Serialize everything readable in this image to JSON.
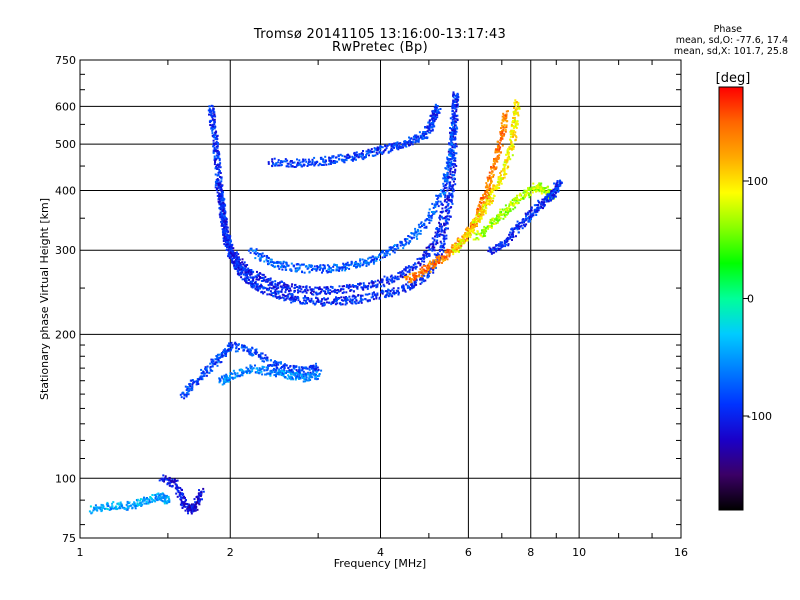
{
  "title_line1": "Tromsø 20141105 13:16:00-13:17:43",
  "title_line2": "RwPretec (Bp)",
  "phase_box": {
    "title": "Phase",
    "stat_o": "mean, sd,O: -77.6, 17.4",
    "stat_x": "mean, sd,X: 101.7, 25.8"
  },
  "colorbar": {
    "label": "[deg]",
    "range": [
      -180,
      180
    ],
    "ticks": [
      {
        "value": 100,
        "label": "100"
      },
      {
        "value": 0,
        "label": "0"
      },
      {
        "value": -100,
        "label": "-100"
      }
    ],
    "colors": [
      "#000000",
      "#3b0066",
      "#1a00c8",
      "#0033ff",
      "#0080ff",
      "#00ccff",
      "#00ff99",
      "#00ff00",
      "#88ff00",
      "#ffff00",
      "#ffaa00",
      "#ff6600",
      "#ff0000"
    ]
  },
  "chart_data": {
    "type": "scatter",
    "title": "Tromsø 20141105 13:16:00-13:17:43",
    "subtitle": "RwPretec (Bp)",
    "xlabel": "Frequency [MHz]",
    "ylabel": "Stationary phase Virtual Height [km]",
    "xscale": "log",
    "yscale": "log",
    "xlim": [
      1,
      16
    ],
    "ylim": [
      75,
      750
    ],
    "x_ticks": [
      1,
      2,
      4,
      6,
      8,
      10,
      16
    ],
    "x_tick_labels": [
      "1",
      "2",
      "4",
      "6",
      "8",
      "10",
      "16"
    ],
    "y_ticks": [
      75,
      100,
      200,
      300,
      400,
      500,
      600,
      750
    ],
    "y_tick_labels": [
      "75",
      "100",
      "200",
      "300",
      "400",
      "500",
      "600",
      "750"
    ],
    "grid": true,
    "colorbar_label": "[deg]",
    "colorbar_range": [
      -180,
      180
    ],
    "traces": [
      {
        "name": "",
        "phase": -95,
        "points": [
          [
            1.82,
            600
          ],
          [
            1.84,
            550
          ],
          [
            1.86,
            500
          ],
          [
            1.88,
            450
          ],
          [
            1.9,
            400
          ],
          [
            1.92,
            370
          ],
          [
            1.94,
            340
          ],
          [
            1.96,
            315
          ],
          [
            2.0,
            295
          ],
          [
            2.05,
            280
          ],
          [
            2.1,
            270
          ],
          [
            2.2,
            258
          ],
          [
            2.3,
            250
          ],
          [
            2.5,
            243
          ],
          [
            2.7,
            238
          ],
          [
            3.0,
            235
          ],
          [
            3.3,
            236
          ],
          [
            3.6,
            238
          ],
          [
            4.0,
            243
          ],
          [
            4.4,
            250
          ],
          [
            4.8,
            262
          ],
          [
            5.1,
            280
          ],
          [
            5.3,
            310
          ],
          [
            5.45,
            360
          ],
          [
            5.55,
            420
          ],
          [
            5.6,
            500
          ],
          [
            5.62,
            600
          ],
          [
            5.63,
            640
          ]
        ]
      },
      {
        "name": "",
        "phase": -100,
        "points": [
          [
            1.88,
            420
          ],
          [
            1.92,
            360
          ],
          [
            1.96,
            320
          ],
          [
            2.0,
            300
          ],
          [
            2.1,
            280
          ],
          [
            2.2,
            268
          ],
          [
            2.4,
            258
          ],
          [
            2.6,
            252
          ],
          [
            2.9,
            248
          ],
          [
            3.2,
            248
          ],
          [
            3.6,
            252
          ],
          [
            4.0,
            258
          ],
          [
            4.4,
            268
          ],
          [
            4.8,
            285
          ],
          [
            5.1,
            310
          ],
          [
            5.3,
            350
          ],
          [
            5.45,
            420
          ],
          [
            5.55,
            520
          ],
          [
            5.6,
            620
          ]
        ]
      },
      {
        "name": "",
        "phase": -75,
        "points": [
          [
            2.2,
            300
          ],
          [
            2.4,
            285
          ],
          [
            2.6,
            278
          ],
          [
            2.9,
            275
          ],
          [
            3.2,
            276
          ],
          [
            3.5,
            280
          ],
          [
            3.8,
            287
          ],
          [
            4.2,
            300
          ],
          [
            4.6,
            320
          ],
          [
            5.0,
            350
          ],
          [
            5.3,
            400
          ],
          [
            5.5,
            470
          ],
          [
            5.6,
            550
          ]
        ]
      },
      {
        "name": "",
        "phase": -90,
        "points": [
          [
            2.4,
            460
          ],
          [
            2.7,
            458
          ],
          [
            3.0,
            462
          ],
          [
            3.3,
            468
          ],
          [
            3.6,
            475
          ],
          [
            3.9,
            485
          ],
          [
            4.2,
            495
          ],
          [
            4.5,
            505
          ],
          [
            4.8,
            520
          ],
          [
            5.0,
            540
          ],
          [
            5.1,
            575
          ],
          [
            5.2,
            600
          ]
        ]
      },
      {
        "name": "",
        "phase": 140,
        "points": [
          [
            4.5,
            262
          ],
          [
            4.8,
            270
          ],
          [
            5.1,
            282
          ],
          [
            5.4,
            295
          ],
          [
            5.7,
            310
          ],
          [
            6.0,
            330
          ],
          [
            6.2,
            350
          ],
          [
            6.4,
            380
          ],
          [
            6.6,
            420
          ],
          [
            6.8,
            470
          ],
          [
            7.0,
            530
          ],
          [
            7.1,
            590
          ]
        ]
      },
      {
        "name": "",
        "phase": 95,
        "points": [
          [
            5.6,
            300
          ],
          [
            5.9,
            320
          ],
          [
            6.2,
            345
          ],
          [
            6.5,
            375
          ],
          [
            6.8,
            410
          ],
          [
            7.1,
            450
          ],
          [
            7.3,
            500
          ],
          [
            7.4,
            560
          ],
          [
            7.5,
            620
          ]
        ]
      },
      {
        "name": "",
        "phase": 70,
        "points": [
          [
            6.2,
            320
          ],
          [
            6.6,
            340
          ],
          [
            7.0,
            360
          ],
          [
            7.4,
            380
          ],
          [
            7.8,
            395
          ],
          [
            8.2,
            410
          ],
          [
            8.6,
            400
          ],
          [
            8.8,
            390
          ]
        ]
      },
      {
        "name": "",
        "phase": -95,
        "points": [
          [
            6.6,
            300
          ],
          [
            7.0,
            310
          ],
          [
            7.4,
            330
          ],
          [
            7.8,
            350
          ],
          [
            8.2,
            370
          ],
          [
            8.6,
            385
          ],
          [
            8.9,
            400
          ],
          [
            9.1,
            420
          ]
        ]
      },
      {
        "name": "",
        "phase": -85,
        "points": [
          [
            1.6,
            150
          ],
          [
            1.7,
            160
          ],
          [
            1.8,
            170
          ],
          [
            1.9,
            180
          ],
          [
            2.0,
            190
          ],
          [
            2.2,
            185
          ],
          [
            2.4,
            175
          ],
          [
            2.6,
            170
          ],
          [
            2.8,
            168
          ],
          [
            3.0,
            172
          ]
        ]
      },
      {
        "name": "",
        "phase": -60,
        "points": [
          [
            1.9,
            160
          ],
          [
            2.0,
            165
          ],
          [
            2.2,
            170
          ],
          [
            2.4,
            168
          ],
          [
            2.6,
            165
          ],
          [
            2.8,
            163
          ],
          [
            3.0,
            165
          ]
        ]
      },
      {
        "name": "",
        "phase": -45,
        "points": [
          [
            1.05,
            86
          ],
          [
            1.15,
            88
          ],
          [
            1.25,
            88
          ],
          [
            1.35,
            90
          ],
          [
            1.45,
            92
          ],
          [
            1.5,
            90
          ]
        ]
      },
      {
        "name": "",
        "phase": -110,
        "points": [
          [
            1.45,
            100
          ],
          [
            1.55,
            98
          ],
          [
            1.6,
            90
          ],
          [
            1.65,
            86
          ],
          [
            1.7,
            88
          ],
          [
            1.75,
            95
          ]
        ]
      }
    ]
  }
}
